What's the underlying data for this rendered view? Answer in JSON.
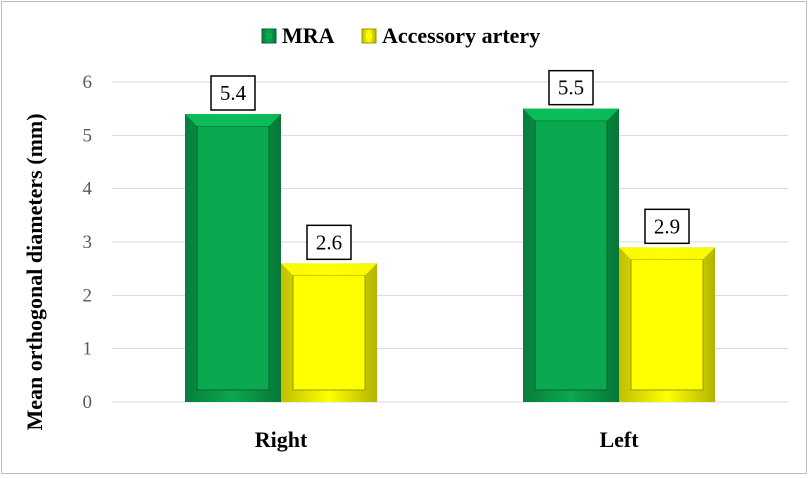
{
  "chart_data": {
    "type": "bar",
    "categories": [
      "Right",
      "Left"
    ],
    "series": [
      {
        "name": "MRA",
        "values": [
          5.4,
          5.5
        ],
        "color": "#0aa84f"
      },
      {
        "name": "Accessory artery",
        "values": [
          2.6,
          2.9
        ],
        "color": "#ffff00"
      }
    ],
    "ylabel": "Mean orthogonal diameters (mm)",
    "xlabel": "",
    "ylim": [
      0,
      6
    ],
    "yticks": [
      0,
      1,
      2,
      3,
      4,
      5,
      6
    ],
    "grid": true,
    "legend_position": "top-center",
    "data_labels": true
  }
}
